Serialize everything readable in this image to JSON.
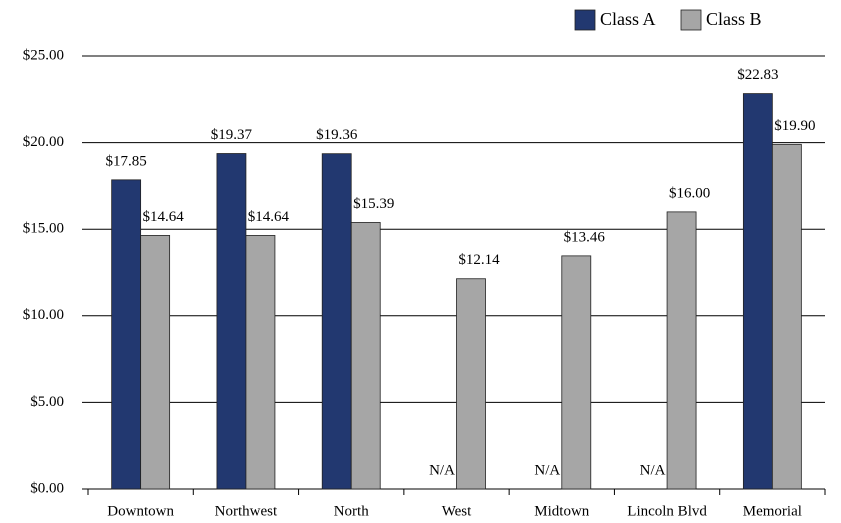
{
  "chart_data": {
    "type": "bar",
    "categories": [
      "Downtown",
      "Northwest",
      "North",
      "West",
      "Midtown",
      "Lincoln Blvd",
      "Memorial"
    ],
    "series": [
      {
        "name": "Class A",
        "color": "#223870",
        "values": [
          17.85,
          19.37,
          19.36,
          null,
          null,
          null,
          22.83
        ],
        "value_labels": [
          "$17.85",
          "$19.37",
          "$19.36",
          "N/A",
          "N/A",
          "N/A",
          "$22.83"
        ]
      },
      {
        "name": "Class B",
        "color": "#a6a6a6",
        "values": [
          14.64,
          14.64,
          15.39,
          12.14,
          13.46,
          16.0,
          19.9
        ],
        "value_labels": [
          "$14.64",
          "$14.64",
          "$15.39",
          "$12.14",
          "$13.46",
          "$16.00",
          "$19.90"
        ]
      }
    ],
    "ylim": [
      0,
      25
    ],
    "yticks": [
      {
        "value": 0,
        "label": "$0.00"
      },
      {
        "value": 5,
        "label": "$5.00"
      },
      {
        "value": 10,
        "label": "$10.00"
      },
      {
        "value": 15,
        "label": "$15.00"
      },
      {
        "value": 20,
        "label": "$20.00"
      },
      {
        "value": 25,
        "label": "$25.00"
      }
    ],
    "grid": true,
    "legend": "top-right"
  }
}
